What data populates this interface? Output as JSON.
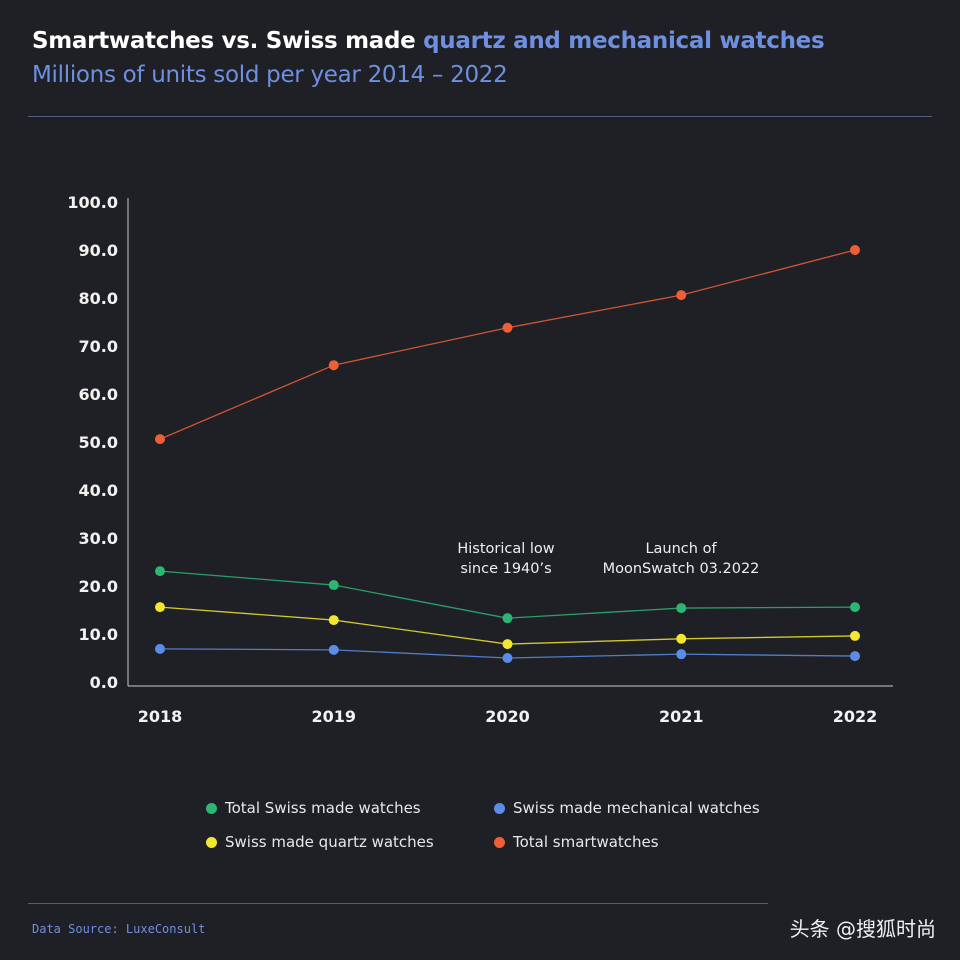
{
  "header": {
    "title_white": "Smartwatches vs. Swiss made",
    "title_blue": "quartz and mechanical watches",
    "subtitle": "Millions of units sold per year 2014 – 2022"
  },
  "chart_data": {
    "type": "line",
    "title": "Smartwatches vs. Swiss made quartz and mechanical watches",
    "subtitle": "Millions of units sold per year 2014 – 2022",
    "categories": [
      "2018",
      "2019",
      "2020",
      "2021",
      "2022"
    ],
    "ylim": [
      0,
      100
    ],
    "yticks": [
      "0.0",
      "10.0",
      "20.0",
      "30.0",
      "40.0",
      "50.0",
      "60.0",
      "70.0",
      "80.0",
      "90.0",
      "100.0"
    ],
    "grid": false,
    "legend_position": "bottom",
    "series": [
      {
        "name": "Total Swiss made watches",
        "color": "#2bb673",
        "values": [
          23.1,
          20.2,
          13.3,
          15.4,
          15.6
        ]
      },
      {
        "name": "Swiss made mechanical watches",
        "color": "#5b8de8",
        "values": [
          6.9,
          6.7,
          5.0,
          5.8,
          5.4
        ]
      },
      {
        "name": "Swiss made quartz watches",
        "color": "#f2e631",
        "values": [
          15.6,
          12.9,
          7.9,
          9.0,
          9.6
        ]
      },
      {
        "name": "Total smartwatches",
        "color": "#ee5f36",
        "values": [
          50.6,
          66.0,
          73.8,
          80.6,
          90.0
        ]
      }
    ],
    "annotations": [
      {
        "text_line1": "Historical low",
        "text_line2": "since 1940’s",
        "x": "2020"
      },
      {
        "text_line1": "Launch of",
        "text_line2": "MoonSwatch 03.2022",
        "x": "2021"
      }
    ]
  },
  "footer": {
    "source": "Data Source: LuxeConsult",
    "watermark": "头条 @搜狐时尚"
  }
}
